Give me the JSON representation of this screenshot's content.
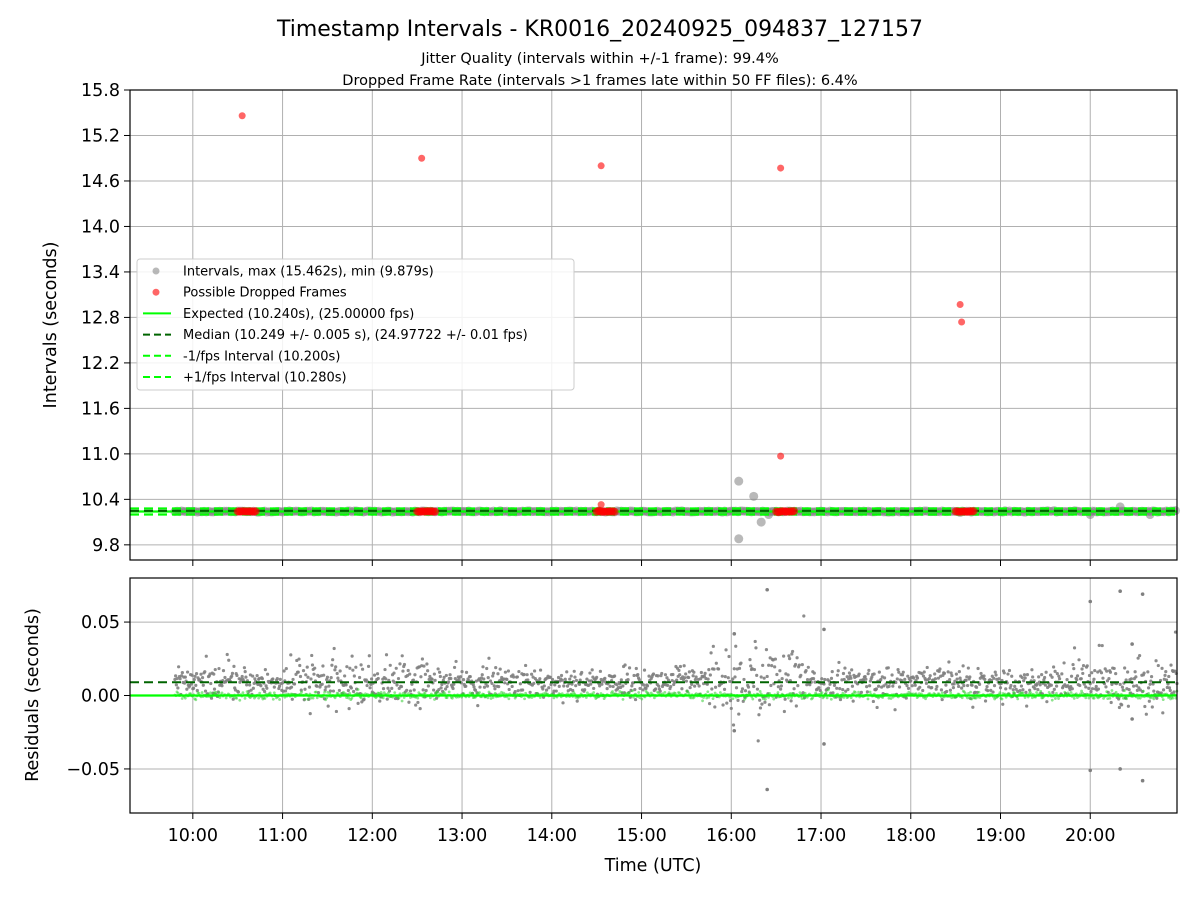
{
  "title": "Timestamp Intervals - KR0016_20240925_094837_127157",
  "subtitle_lines": [
    "Jitter Quality (intervals within +/-1 frame): 99.4%",
    "Dropped Frame Rate (intervals >1 frames late within 50 FF files): 6.4%"
  ],
  "colors": {
    "intervals": "#808080",
    "dropped": "#ff0000",
    "expected": "#00ff00",
    "median": "#006400",
    "grid": "#b0b0b0"
  },
  "chart_data": [
    {
      "type": "scatter",
      "panel": "top",
      "ylabel": "Intervals (seconds)",
      "xlim": [
        "09:18",
        "20:58"
      ],
      "ylim": [
        9.6,
        15.8
      ],
      "yticks": [
        "9.8",
        "10.4",
        "11.0",
        "11.6",
        "12.2",
        "12.8",
        "13.4",
        "14.0",
        "14.6",
        "15.2",
        "15.8"
      ],
      "grid": true,
      "legend_position": "center-left",
      "legend": [
        "Intervals, max (15.462s), min (9.879s)",
        "Possible Dropped Frames",
        "Expected (10.240s), (25.00000 fps)",
        "Median (10.249 +/- 0.005 s), (24.97722 +/- 0.01 fps)",
        "-1/fps Interval (10.200s)",
        "+1/fps Interval (10.280s)"
      ],
      "series": [
        {
          "name": "Intervals, max (15.462s), min (9.879s)",
          "x_range": [
            "09:48",
            "20:58"
          ],
          "baseline_y": 10.24,
          "notable_points": [
            {
              "x": "16:05",
              "y": 10.64
            },
            {
              "x": "16:15",
              "y": 10.44
            },
            {
              "x": "16:20",
              "y": 10.1
            },
            {
              "x": "16:05",
              "y": 9.88
            },
            {
              "x": "16:25",
              "y": 10.2
            },
            {
              "x": "20:00",
              "y": 10.2
            },
            {
              "x": "20:20",
              "y": 10.3
            },
            {
              "x": "20:40",
              "y": 10.2
            }
          ]
        },
        {
          "name": "Possible Dropped Frames",
          "points": [
            {
              "x": "10:33",
              "y": 15.46
            },
            {
              "x": "12:33",
              "y": 14.9
            },
            {
              "x": "14:33",
              "y": 14.8
            },
            {
              "x": "16:33",
              "y": 14.77
            },
            {
              "x": "18:33",
              "y": 12.97
            },
            {
              "x": "18:34",
              "y": 12.74
            },
            {
              "x": "16:33",
              "y": 10.97
            },
            {
              "x": "14:33",
              "y": 10.33
            }
          ],
          "clusters_at_y": 10.24,
          "cluster_x_ranges": [
            [
              "10:30",
              "10:42"
            ],
            [
              "12:30",
              "12:42"
            ],
            [
              "14:30",
              "14:42"
            ],
            [
              "16:30",
              "16:42"
            ],
            [
              "18:30",
              "18:42"
            ]
          ]
        },
        {
          "name": "Expected (10.240s), (25.00000 fps)",
          "y": 10.24,
          "style": "solid"
        },
        {
          "name": "Median (10.249 +/- 0.005 s), (24.97722 +/- 0.01 fps)",
          "y": 10.249,
          "style": "dashed"
        },
        {
          "name": "-1/fps Interval (10.200s)",
          "y": 10.2,
          "style": "dashed"
        },
        {
          "name": "+1/fps Interval (10.280s)",
          "y": 10.28,
          "style": "dashed"
        }
      ]
    },
    {
      "type": "scatter",
      "panel": "bottom",
      "ylabel": "Residuals (seconds)",
      "xlabel": "Time (UTC)",
      "xlim": [
        "09:18",
        "20:58"
      ],
      "ylim": [
        -0.08,
        0.08
      ],
      "yticks": [
        "−0.05",
        "0.00",
        "0.05"
      ],
      "ytick_values": [
        -0.05,
        0.0,
        0.05
      ],
      "xticks": [
        "10:00",
        "11:00",
        "12:00",
        "13:00",
        "14:00",
        "15:00",
        "16:00",
        "17:00",
        "18:00",
        "19:00",
        "20:00"
      ],
      "grid": true,
      "series": [
        {
          "name": "Residuals",
          "x_range": [
            "09:48",
            "20:58"
          ],
          "baseline_y": 0.009,
          "outliers": [
            {
              "x": "16:24",
              "y": 0.072
            },
            {
              "x": "16:24",
              "y": -0.064
            },
            {
              "x": "17:02",
              "y": 0.045
            },
            {
              "x": "17:02",
              "y": -0.033
            },
            {
              "x": "16:02",
              "y": 0.042
            },
            {
              "x": "16:02",
              "y": -0.024
            },
            {
              "x": "20:00",
              "y": 0.064
            },
            {
              "x": "20:00",
              "y": -0.051
            },
            {
              "x": "20:20",
              "y": 0.071
            },
            {
              "x": "20:20",
              "y": -0.05
            },
            {
              "x": "20:35",
              "y": 0.069
            },
            {
              "x": "20:35",
              "y": -0.058
            },
            {
              "x": "20:28",
              "y": 0.035
            },
            {
              "x": "20:28",
              "y": -0.016
            }
          ]
        },
        {
          "name": "Median",
          "y": 0.009,
          "style": "dashed"
        },
        {
          "name": "Expected",
          "y": 0.0,
          "style": "solid"
        }
      ]
    }
  ]
}
